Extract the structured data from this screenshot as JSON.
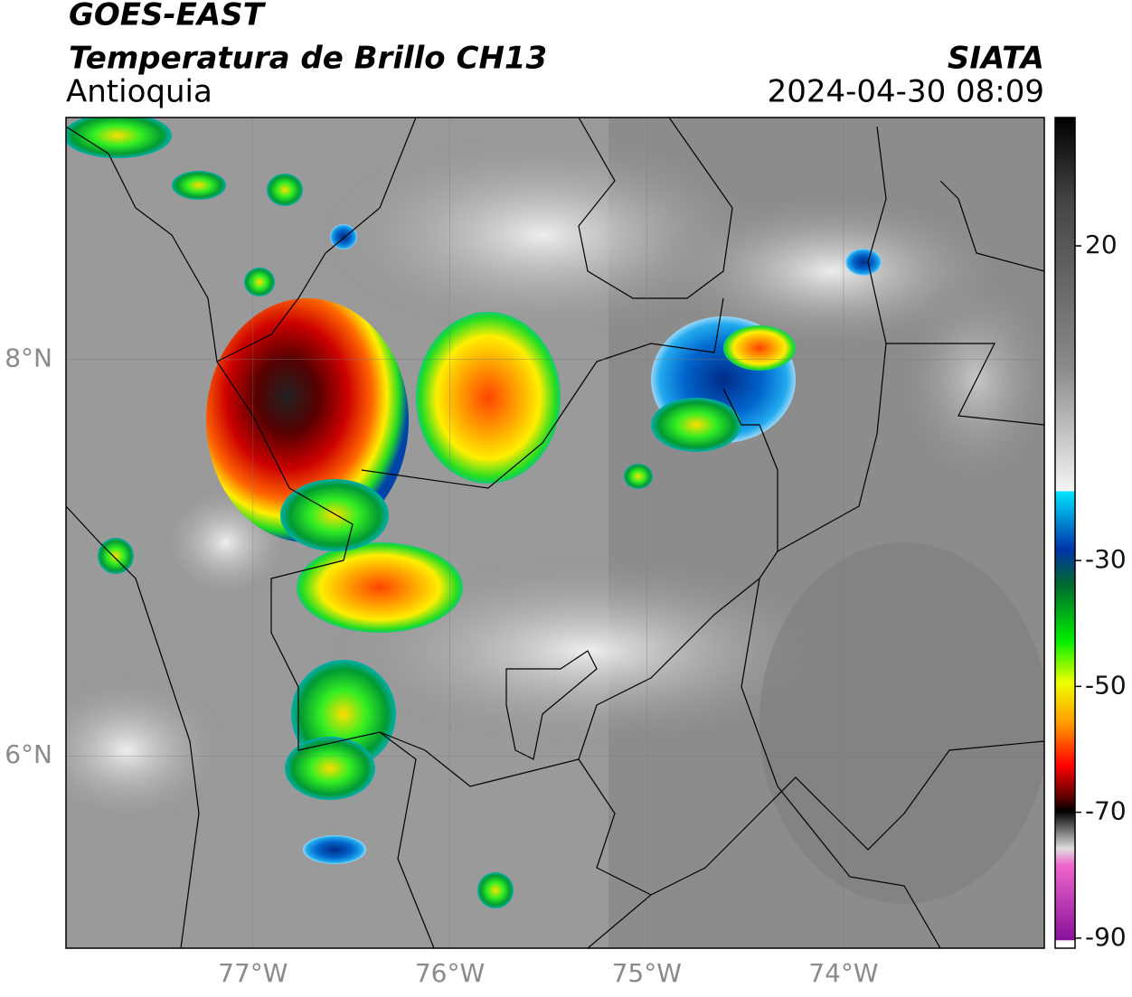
{
  "title": "GOES-EAST",
  "subtitle": "Temperatura de Brillo CH13",
  "region": "Antioquia",
  "source": "SIATA",
  "datetime": "2024-04-30 08:09",
  "map": {
    "xlim": [
      -77.95,
      -72.98
    ],
    "ylim": [
      5.03,
      9.22
    ],
    "xticks": [
      {
        "value": -77,
        "label": "77°W"
      },
      {
        "value": -76,
        "label": "76°W"
      },
      {
        "value": -75,
        "label": "75°W"
      },
      {
        "value": -74,
        "label": "74°W"
      }
    ],
    "yticks": [
      {
        "value": 8,
        "label": "8°N"
      },
      {
        "value": 6,
        "label": "6°N"
      }
    ]
  },
  "colorbar": {
    "lim": [
      -91.6,
      40.4
    ],
    "ticks": [
      20,
      -30,
      -50,
      -70,
      -90
    ]
  }
}
